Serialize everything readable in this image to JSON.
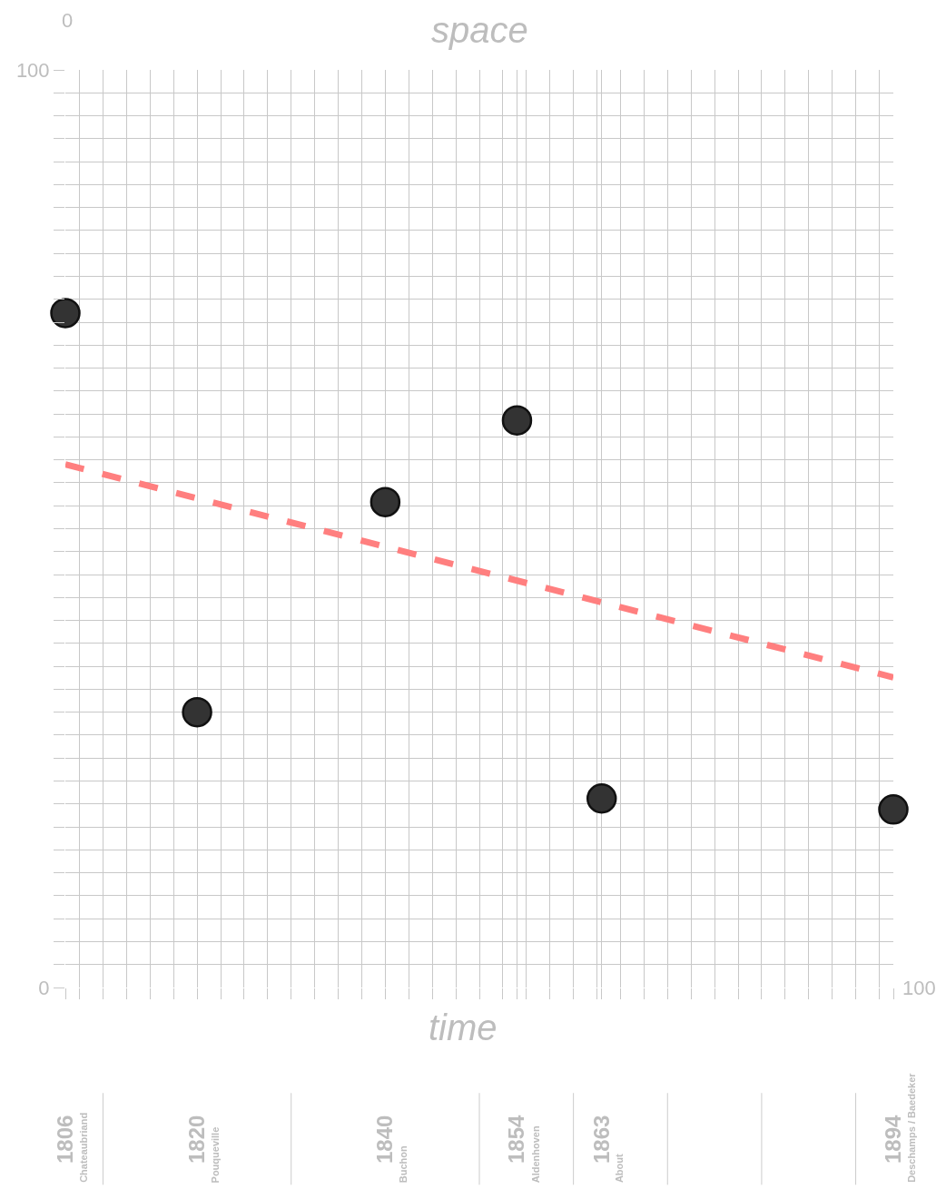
{
  "chart_data": {
    "type": "scatter",
    "xlabel": "time",
    "ylabel": "space",
    "x": [
      1806,
      1820,
      1840,
      1854,
      1863,
      1894
    ],
    "series": [
      {
        "color": "#333333",
        "values": [
          73.5,
          30,
          52.9,
          61.8,
          20.6,
          19.4
        ]
      },
      {
        "type": "line",
        "color": "#ff7f7f",
        "line_style": "dashed",
        "marker": "none",
        "x": [
          1806,
          1894
        ],
        "values": [
          57,
          33.8
        ]
      }
    ],
    "marker": "circle",
    "grid": true,
    "xlim": [
      1806,
      1894
    ],
    "xticks": [
      {
        "value": 1806,
        "label": "1806"
      },
      {
        "value": 1807.5,
        "label": null
      },
      {
        "value": 1810,
        "label": null
      },
      {
        "value": 1812.5,
        "label": null
      },
      {
        "value": 1815,
        "label": null
      },
      {
        "value": 1817.5,
        "label": null
      },
      {
        "value": 1820,
        "label": "1820"
      },
      {
        "value": 1822.5,
        "label": null
      },
      {
        "value": 1825,
        "label": null
      },
      {
        "value": 1827.5,
        "label": null
      },
      {
        "value": 1830,
        "label": null
      },
      {
        "value": 1832.5,
        "label": null
      },
      {
        "value": 1835,
        "label": null
      },
      {
        "value": 1837.5,
        "label": null
      },
      {
        "value": 1840,
        "label": "1840"
      },
      {
        "value": 1842.5,
        "label": null
      },
      {
        "value": 1845,
        "label": null
      },
      {
        "value": 1847.5,
        "label": null
      },
      {
        "value": 1850,
        "label": null
      },
      {
        "value": 1852.5,
        "label": null
      },
      {
        "value": 1854,
        "label": "1854"
      },
      {
        "value": 1855,
        "label": null
      },
      {
        "value": 1857.5,
        "label": null
      },
      {
        "value": 1860,
        "label": null
      },
      {
        "value": 1862.5,
        "label": null
      },
      {
        "value": 1863,
        "label": "1863"
      },
      {
        "value": 1865,
        "label": null
      },
      {
        "value": 1867.5,
        "label": null
      },
      {
        "value": 1870,
        "label": null
      },
      {
        "value": 1872.5,
        "label": null
      },
      {
        "value": 1875,
        "label": null
      },
      {
        "value": 1877.5,
        "label": null
      },
      {
        "value": 1880,
        "label": null
      },
      {
        "value": 1882.5,
        "label": null
      },
      {
        "value": 1885,
        "label": null
      },
      {
        "value": 1887.5,
        "label": null
      },
      {
        "value": 1890,
        "label": null
      },
      {
        "value": 1892.5,
        "label": null
      },
      {
        "value": 1894,
        "label": "1894"
      }
    ],
    "ylim": [
      0,
      100
    ],
    "yticks": [
      0,
      {
        "value": 2.5,
        "label": null
      },
      {
        "value": 5,
        "label": null
      },
      {
        "value": 7.5,
        "label": null
      },
      {
        "value": 10,
        "label": null
      },
      {
        "value": 12.5,
        "label": null
      },
      {
        "value": 15,
        "label": null
      },
      {
        "value": 17.5,
        "label": null
      },
      {
        "value": 20,
        "label": null
      },
      {
        "value": 22.5,
        "label": null
      },
      {
        "value": 25,
        "label": null
      },
      {
        "value": 27.5,
        "label": null
      },
      {
        "value": 30,
        "label": null
      },
      {
        "value": 32.5,
        "label": null
      },
      {
        "value": 35,
        "label": null
      },
      {
        "value": 37.5,
        "label": null
      },
      {
        "value": 40,
        "label": null
      },
      {
        "value": 42.5,
        "label": null
      },
      {
        "value": 45,
        "label": null
      },
      {
        "value": 47.5,
        "label": null
      },
      {
        "value": 50,
        "label": null
      },
      {
        "value": 52.5,
        "label": null
      },
      {
        "value": 55,
        "label": null
      },
      {
        "value": 57.5,
        "label": null
      },
      {
        "value": 60,
        "label": null
      },
      {
        "value": 62.5,
        "label": null
      },
      {
        "value": 65,
        "label": null
      },
      {
        "value": 67.5,
        "label": null
      },
      {
        "value": 70,
        "label": null
      },
      {
        "value": 72.5,
        "label": null
      },
      {
        "value": 75,
        "label": null
      },
      {
        "value": 77.5,
        "label": null
      },
      {
        "value": 80,
        "label": null
      },
      {
        "value": 82.5,
        "label": null
      },
      {
        "value": 85,
        "label": null
      },
      {
        "value": 87.5,
        "label": null
      },
      {
        "value": 90,
        "label": null
      },
      {
        "value": 92.5,
        "label": null
      },
      {
        "value": 95,
        "label": null
      },
      {
        "value": 97.5,
        "label": null
      },
      100
    ],
    "annotations": [
      "Chateaubriand",
      "Pouqueville",
      "Buchon",
      "Aldenhoven",
      "About",
      "Deschamps / Baedeker",
      "0",
      "100"
    ]
  }
}
